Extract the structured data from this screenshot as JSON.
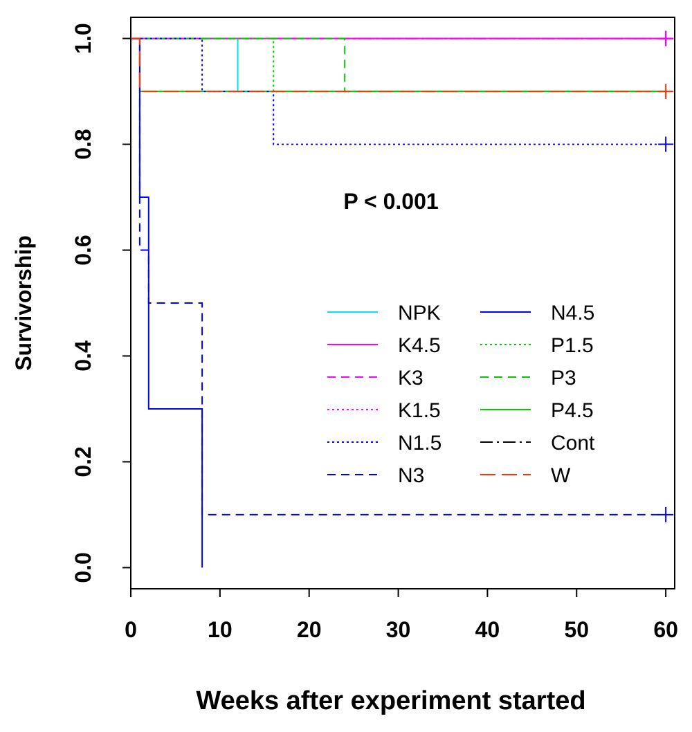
{
  "chart_data": {
    "type": "line",
    "subtype": "kaplan-meier step",
    "title": "",
    "xlabel": "Weeks after experiment started",
    "ylabel": "Survivorship",
    "annotation": "P < 0.001",
    "xlim": [
      0,
      61
    ],
    "ylim": [
      -0.04,
      1.04
    ],
    "xticks": [
      0,
      10,
      20,
      30,
      40,
      50,
      60
    ],
    "xtick_labels": [
      "0",
      "10",
      "20",
      "30",
      "40",
      "50",
      "60"
    ],
    "yticks": [
      0.0,
      0.2,
      0.4,
      0.6,
      0.8,
      1.0
    ],
    "ytick_labels": [
      "0.0",
      "0.2",
      "0.4",
      "0.6",
      "0.8",
      "1.0"
    ],
    "grid": false,
    "legend_position": "center-right",
    "series": [
      {
        "name": "Cont",
        "color": "#000000",
        "dash": "longdash-dot",
        "censored": [
          60
        ],
        "points": [
          [
            0,
            1.0
          ],
          [
            60,
            1.0
          ]
        ]
      },
      {
        "name": "NPK",
        "color": "#00e5ee",
        "dash": "solid",
        "censored": [],
        "points": [
          [
            0,
            1.0
          ],
          [
            12,
            1.0
          ],
          [
            12,
            0.9
          ],
          [
            60,
            0.9
          ]
        ]
      },
      {
        "name": "K4.5",
        "color": "#ff00ff",
        "dash": "solid",
        "censored": [
          60
        ],
        "points": [
          [
            0,
            1.0
          ],
          [
            60,
            1.0
          ]
        ]
      },
      {
        "name": "K3",
        "color": "#ff00ff",
        "dash": "dashed",
        "censored": [
          60
        ],
        "points": [
          [
            0,
            1.0
          ],
          [
            60,
            1.0
          ]
        ]
      },
      {
        "name": "K1.5",
        "color": "#ff00ff",
        "dash": "dotted",
        "censored": [
          60
        ],
        "points": [
          [
            0,
            1.0
          ],
          [
            60,
            1.0
          ]
        ]
      },
      {
        "name": "P4.5",
        "color": "#00cc00",
        "dash": "solid",
        "censored": [],
        "points": [
          [
            0,
            1.0
          ],
          [
            1,
            1.0
          ],
          [
            1,
            0.9
          ],
          [
            60,
            0.9
          ]
        ]
      },
      {
        "name": "P1.5",
        "color": "#00cc00",
        "dash": "dotted",
        "censored": [],
        "points": [
          [
            0,
            1.0
          ],
          [
            16,
            1.0
          ],
          [
            16,
            0.9
          ],
          [
            60,
            0.9
          ]
        ]
      },
      {
        "name": "P3",
        "color": "#00cc00",
        "dash": "dashed",
        "censored": [],
        "points": [
          [
            0,
            1.0
          ],
          [
            24,
            1.0
          ],
          [
            24,
            0.9
          ],
          [
            60,
            0.9
          ]
        ]
      },
      {
        "name": "N1.5",
        "color": "#0000ff",
        "dash": "dotted",
        "censored": [
          60
        ],
        "points": [
          [
            0,
            1.0
          ],
          [
            8,
            1.0
          ],
          [
            8,
            0.9
          ],
          [
            16,
            0.9
          ],
          [
            16,
            0.8
          ],
          [
            60,
            0.8
          ]
        ]
      },
      {
        "name": "N3",
        "color": "#0000ff",
        "dash": "dashed",
        "censored": [
          60
        ],
        "points": [
          [
            0,
            1.0
          ],
          [
            1,
            1.0
          ],
          [
            1,
            0.6
          ],
          [
            2,
            0.6
          ],
          [
            2,
            0.5
          ],
          [
            8,
            0.5
          ],
          [
            8,
            0.1
          ],
          [
            60,
            0.1
          ]
        ]
      },
      {
        "name": "N4.5",
        "color": "#0000ff",
        "dash": "solid",
        "censored": [],
        "points": [
          [
            0,
            1.0
          ],
          [
            1,
            1.0
          ],
          [
            1,
            0.7
          ],
          [
            2,
            0.7
          ],
          [
            2,
            0.3
          ],
          [
            8,
            0.3
          ],
          [
            8,
            0.0
          ]
        ]
      },
      {
        "name": "W",
        "color": "#ff3300",
        "dash": "longdash",
        "censored": [
          60
        ],
        "points": [
          [
            0,
            1.0
          ],
          [
            1,
            1.0
          ],
          [
            1,
            0.9
          ],
          [
            60,
            0.9
          ]
        ]
      }
    ],
    "legend": {
      "columns": [
        [
          "NPK",
          "K4.5",
          "K3",
          "K1.5",
          "N1.5",
          "N3"
        ],
        [
          "N4.5",
          "P1.5",
          "P3",
          "P4.5",
          "Cont",
          "W"
        ]
      ]
    }
  }
}
